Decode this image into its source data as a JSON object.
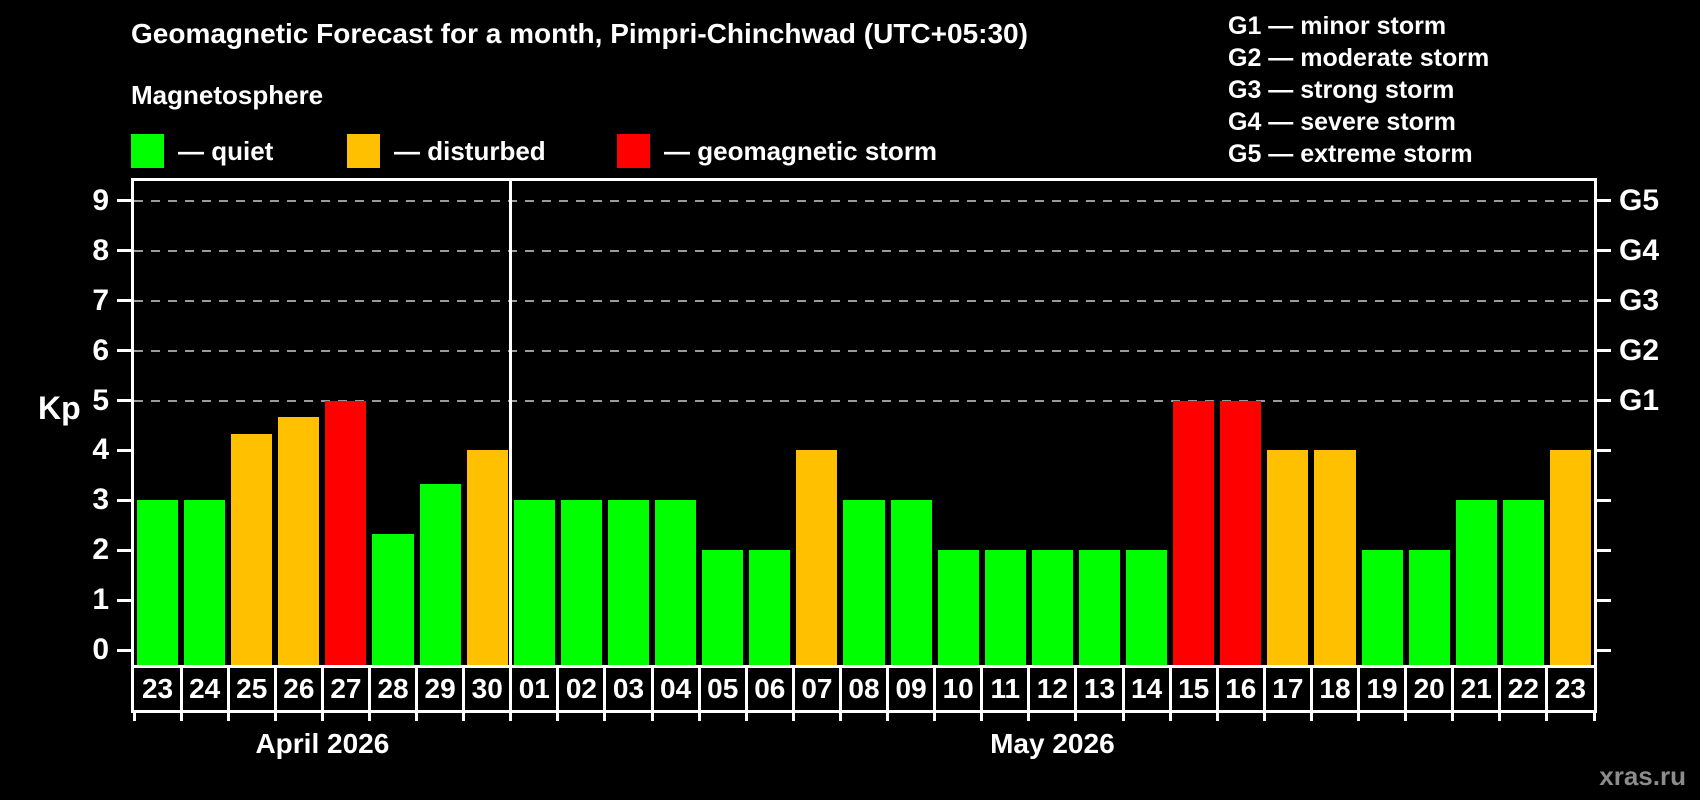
{
  "title": "Geomagnetic Forecast for a month, Pimpri-Chinchwad (UTC+05:30)",
  "subtitle": "Magnetosphere",
  "legend": [
    {
      "key": "quiet",
      "color": "#00ff00",
      "label": "— quiet"
    },
    {
      "key": "disturbed",
      "color": "#ffc000",
      "label": "— disturbed"
    },
    {
      "key": "storm",
      "color": "#ff0000",
      "label": "— geomagnetic storm"
    }
  ],
  "g_scale": [
    "G1 — minor storm",
    "G2 — moderate storm",
    "G3 — strong storm",
    "G4 — severe storm",
    "G5 — extreme storm"
  ],
  "watermark": "xras.ru",
  "chart_data": {
    "type": "bar",
    "ylabel": "Kp",
    "ylim": [
      0,
      9
    ],
    "yticks": [
      0,
      1,
      2,
      3,
      4,
      5,
      6,
      7,
      8,
      9
    ],
    "gridlines_kp": [
      5,
      6,
      7,
      8,
      9
    ],
    "right_axis": [
      {
        "kp": 5,
        "label": "G1"
      },
      {
        "kp": 6,
        "label": "G2"
      },
      {
        "kp": 7,
        "label": "G3"
      },
      {
        "kp": 8,
        "label": "G4"
      },
      {
        "kp": 9,
        "label": "G5"
      }
    ],
    "months": [
      {
        "label": "April 2026",
        "days": 8
      },
      {
        "label": "May 2026",
        "days": 23
      }
    ],
    "categories": [
      "23",
      "24",
      "25",
      "26",
      "27",
      "28",
      "29",
      "30",
      "01",
      "02",
      "03",
      "04",
      "05",
      "06",
      "07",
      "08",
      "09",
      "10",
      "11",
      "12",
      "13",
      "14",
      "15",
      "16",
      "17",
      "18",
      "19",
      "20",
      "21",
      "22",
      "23"
    ],
    "values": [
      3,
      3,
      4.33,
      4.67,
      5,
      2.33,
      3.33,
      4,
      3,
      3,
      3,
      3,
      2,
      2,
      4,
      3,
      3,
      2,
      2,
      2,
      2,
      2,
      5,
      5,
      4,
      4,
      2,
      2,
      3,
      3,
      4
    ],
    "statuses": [
      "quiet",
      "quiet",
      "disturbed",
      "disturbed",
      "storm",
      "quiet",
      "quiet",
      "disturbed",
      "quiet",
      "quiet",
      "quiet",
      "quiet",
      "quiet",
      "quiet",
      "disturbed",
      "quiet",
      "quiet",
      "quiet",
      "quiet",
      "quiet",
      "quiet",
      "quiet",
      "storm",
      "storm",
      "disturbed",
      "disturbed",
      "quiet",
      "quiet",
      "quiet",
      "quiet",
      "disturbed"
    ],
    "status_colors": {
      "quiet": "#00ff00",
      "disturbed": "#ffc000",
      "storm": "#ff0000"
    },
    "grid_color": "#9a9a9a",
    "legend_position": "top-left"
  }
}
